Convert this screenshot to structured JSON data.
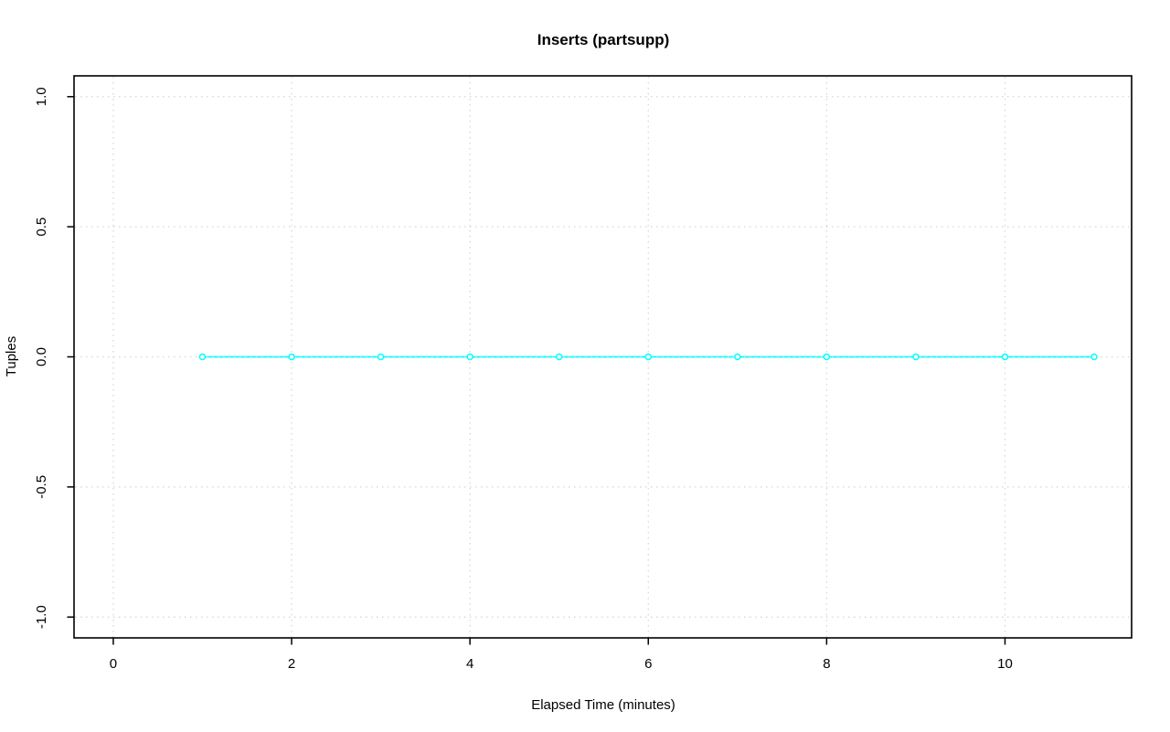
{
  "page": {
    "background": "#ffffff"
  },
  "chart_data": {
    "type": "line",
    "title": "Inserts (partsupp)",
    "xlabel": "Elapsed Time (minutes)",
    "ylabel": "Tuples",
    "series": [
      {
        "name": "inserts-partsupp",
        "x": [
          1,
          2,
          3,
          4,
          5,
          6,
          7,
          8,
          9,
          10,
          11
        ],
        "y": [
          0,
          0,
          0,
          0,
          0,
          0,
          0,
          0,
          0,
          0,
          0
        ],
        "color": "#00ffff",
        "line_width": 1.8,
        "marker": "open-circle",
        "marker_radius": 3,
        "marker_fill": "#ffffff"
      }
    ],
    "x_ticks": [
      0,
      2,
      4,
      6,
      8,
      10
    ],
    "x_tick_labels": [
      "0",
      "2",
      "4",
      "6",
      "8",
      "10"
    ],
    "y_ticks": [
      -1.0,
      -0.5,
      0.0,
      0.5,
      1.0
    ],
    "y_tick_labels": [
      "-1.0",
      "-0.5",
      "0.0",
      "0.5",
      "1.0"
    ],
    "xlim": [
      -0.44,
      11.42
    ],
    "ylim": [
      -1.08,
      1.08
    ],
    "grid": true,
    "grid_color": "#d4d4d4",
    "grid_style": "dotted",
    "axis_color": "#000000",
    "legend": "none"
  }
}
